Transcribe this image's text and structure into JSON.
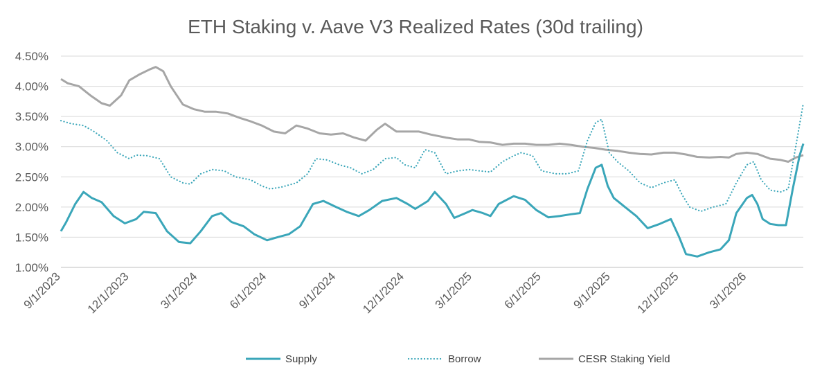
{
  "chart_data": {
    "type": "line",
    "title": "ETH Staking v. Aave V3 Realized Rates (30d trailing)",
    "xlabel": "",
    "ylabel": "",
    "ylim": [
      0.01,
      0.045
    ],
    "y_ticks": [
      "1.00%",
      "1.50%",
      "2.00%",
      "2.50%",
      "3.00%",
      "3.50%",
      "4.00%",
      "4.50%"
    ],
    "x_range": [
      "2023-09-01",
      "2026-05-15"
    ],
    "x_ticks": [
      "9/1/2023",
      "12/1/2023",
      "3/1/2024",
      "6/1/2024",
      "9/1/2024",
      "12/1/2024",
      "3/1/2025",
      "6/1/2025",
      "9/1/2025",
      "12/1/2025",
      "3/1/2026"
    ],
    "grid": true,
    "legend_position": "bottom",
    "series": [
      {
        "name": "Supply",
        "color": "#3aa6b9",
        "style": "solid",
        "points": [
          [
            "2023-09-01",
            1.6
          ],
          [
            "2023-09-08",
            1.75
          ],
          [
            "2023-09-20",
            2.05
          ],
          [
            "2023-10-01",
            2.25
          ],
          [
            "2023-10-12",
            2.15
          ],
          [
            "2023-10-25",
            2.08
          ],
          [
            "2023-11-10",
            1.85
          ],
          [
            "2023-11-25",
            1.73
          ],
          [
            "2023-12-10",
            1.8
          ],
          [
            "2023-12-20",
            1.92
          ],
          [
            "2024-01-05",
            1.9
          ],
          [
            "2024-01-20",
            1.6
          ],
          [
            "2024-02-05",
            1.42
          ],
          [
            "2024-02-20",
            1.4
          ],
          [
            "2024-03-05",
            1.6
          ],
          [
            "2024-03-20",
            1.85
          ],
          [
            "2024-04-01",
            1.9
          ],
          [
            "2024-04-15",
            1.75
          ],
          [
            "2024-05-01",
            1.68
          ],
          [
            "2024-05-15",
            1.55
          ],
          [
            "2024-06-01",
            1.45
          ],
          [
            "2024-06-15",
            1.5
          ],
          [
            "2024-06-30",
            1.55
          ],
          [
            "2024-07-15",
            1.68
          ],
          [
            "2024-08-01",
            2.05
          ],
          [
            "2024-08-15",
            2.1
          ],
          [
            "2024-09-01",
            2.0
          ],
          [
            "2024-09-15",
            1.92
          ],
          [
            "2024-10-01",
            1.85
          ],
          [
            "2024-10-15",
            1.95
          ],
          [
            "2024-11-01",
            2.1
          ],
          [
            "2024-11-20",
            2.15
          ],
          [
            "2024-12-05",
            2.05
          ],
          [
            "2024-12-15",
            1.97
          ],
          [
            "2025-01-01",
            2.1
          ],
          [
            "2025-01-10",
            2.25
          ],
          [
            "2025-01-25",
            2.05
          ],
          [
            "2025-02-05",
            1.82
          ],
          [
            "2025-02-20",
            1.9
          ],
          [
            "2025-03-01",
            1.95
          ],
          [
            "2025-03-15",
            1.9
          ],
          [
            "2025-03-25",
            1.85
          ],
          [
            "2025-04-05",
            2.05
          ],
          [
            "2025-04-25",
            2.18
          ],
          [
            "2025-05-10",
            2.12
          ],
          [
            "2025-05-25",
            1.95
          ],
          [
            "2025-06-10",
            1.83
          ],
          [
            "2025-06-25",
            1.85
          ],
          [
            "2025-07-10",
            1.88
          ],
          [
            "2025-07-22",
            1.9
          ],
          [
            "2025-08-01",
            2.3
          ],
          [
            "2025-08-12",
            2.65
          ],
          [
            "2025-08-20",
            2.7
          ],
          [
            "2025-08-28",
            2.35
          ],
          [
            "2025-09-05",
            2.15
          ],
          [
            "2025-09-20",
            2.0
          ],
          [
            "2025-10-05",
            1.85
          ],
          [
            "2025-10-20",
            1.65
          ],
          [
            "2025-11-05",
            1.72
          ],
          [
            "2025-11-20",
            1.8
          ],
          [
            "2025-12-01",
            1.5
          ],
          [
            "2025-12-10",
            1.22
          ],
          [
            "2025-12-25",
            1.18
          ],
          [
            "2026-01-10",
            1.25
          ],
          [
            "2026-01-25",
            1.3
          ],
          [
            "2026-02-05",
            1.45
          ],
          [
            "2026-02-15",
            1.9
          ],
          [
            "2026-03-01",
            2.15
          ],
          [
            "2026-03-08",
            2.2
          ],
          [
            "2026-03-15",
            2.05
          ],
          [
            "2026-03-22",
            1.8
          ],
          [
            "2026-04-01",
            1.72
          ],
          [
            "2026-04-12",
            1.7
          ],
          [
            "2026-04-22",
            1.7
          ],
          [
            "2026-05-01",
            2.3
          ],
          [
            "2026-05-10",
            2.85
          ],
          [
            "2026-05-15",
            3.05
          ]
        ]
      },
      {
        "name": "Borrow",
        "color": "#3aa6b9",
        "style": "dotted",
        "points": [
          [
            "2023-09-01",
            3.43
          ],
          [
            "2023-09-15",
            3.38
          ],
          [
            "2023-10-01",
            3.35
          ],
          [
            "2023-10-15",
            3.25
          ],
          [
            "2023-11-01",
            3.1
          ],
          [
            "2023-11-15",
            2.9
          ],
          [
            "2023-12-01",
            2.8
          ],
          [
            "2023-12-10",
            2.86
          ],
          [
            "2023-12-25",
            2.85
          ],
          [
            "2024-01-10",
            2.8
          ],
          [
            "2024-01-25",
            2.5
          ],
          [
            "2024-02-10",
            2.4
          ],
          [
            "2024-02-20",
            2.38
          ],
          [
            "2024-03-05",
            2.55
          ],
          [
            "2024-03-20",
            2.62
          ],
          [
            "2024-04-05",
            2.6
          ],
          [
            "2024-04-20",
            2.5
          ],
          [
            "2024-05-10",
            2.45
          ],
          [
            "2024-05-25",
            2.35
          ],
          [
            "2024-06-05",
            2.3
          ],
          [
            "2024-06-20",
            2.33
          ],
          [
            "2024-07-10",
            2.4
          ],
          [
            "2024-07-25",
            2.55
          ],
          [
            "2024-08-05",
            2.8
          ],
          [
            "2024-08-20",
            2.78
          ],
          [
            "2024-09-05",
            2.7
          ],
          [
            "2024-09-20",
            2.65
          ],
          [
            "2024-10-05",
            2.55
          ],
          [
            "2024-10-20",
            2.62
          ],
          [
            "2024-11-05",
            2.8
          ],
          [
            "2024-11-20",
            2.82
          ],
          [
            "2024-12-01",
            2.7
          ],
          [
            "2024-12-15",
            2.65
          ],
          [
            "2024-12-28",
            2.95
          ],
          [
            "2025-01-10",
            2.9
          ],
          [
            "2025-01-25",
            2.55
          ],
          [
            "2025-02-10",
            2.6
          ],
          [
            "2025-02-25",
            2.62
          ],
          [
            "2025-03-10",
            2.6
          ],
          [
            "2025-03-25",
            2.58
          ],
          [
            "2025-04-10",
            2.75
          ],
          [
            "2025-04-25",
            2.85
          ],
          [
            "2025-05-05",
            2.9
          ],
          [
            "2025-05-20",
            2.85
          ],
          [
            "2025-06-01",
            2.6
          ],
          [
            "2025-06-20",
            2.55
          ],
          [
            "2025-07-05",
            2.55
          ],
          [
            "2025-07-20",
            2.6
          ],
          [
            "2025-08-01",
            3.1
          ],
          [
            "2025-08-12",
            3.4
          ],
          [
            "2025-08-20",
            3.45
          ],
          [
            "2025-08-30",
            2.9
          ],
          [
            "2025-09-10",
            2.75
          ],
          [
            "2025-09-25",
            2.6
          ],
          [
            "2025-10-10",
            2.4
          ],
          [
            "2025-10-25",
            2.32
          ],
          [
            "2025-11-10",
            2.4
          ],
          [
            "2025-11-25",
            2.45
          ],
          [
            "2025-12-05",
            2.2
          ],
          [
            "2025-12-15",
            2.0
          ],
          [
            "2025-12-30",
            1.93
          ],
          [
            "2026-01-15",
            2.0
          ],
          [
            "2026-02-01",
            2.05
          ],
          [
            "2026-02-15",
            2.4
          ],
          [
            "2026-03-01",
            2.7
          ],
          [
            "2026-03-10",
            2.75
          ],
          [
            "2026-03-20",
            2.45
          ],
          [
            "2026-04-01",
            2.28
          ],
          [
            "2026-04-15",
            2.25
          ],
          [
            "2026-04-25",
            2.3
          ],
          [
            "2026-05-05",
            3.0
          ],
          [
            "2026-05-15",
            3.72
          ]
        ]
      },
      {
        "name": "CESR Staking Yield",
        "color": "#a6a6a6",
        "style": "solid",
        "points": [
          [
            "2023-09-01",
            4.12
          ],
          [
            "2023-09-10",
            4.05
          ],
          [
            "2023-09-25",
            4.0
          ],
          [
            "2023-10-10",
            3.85
          ],
          [
            "2023-10-25",
            3.72
          ],
          [
            "2023-11-05",
            3.68
          ],
          [
            "2023-11-20",
            3.85
          ],
          [
            "2023-12-01",
            4.1
          ],
          [
            "2023-12-15",
            4.2
          ],
          [
            "2023-12-28",
            4.28
          ],
          [
            "2024-01-05",
            4.32
          ],
          [
            "2024-01-15",
            4.25
          ],
          [
            "2024-01-25",
            4.0
          ],
          [
            "2024-02-10",
            3.7
          ],
          [
            "2024-02-25",
            3.62
          ],
          [
            "2024-03-10",
            3.58
          ],
          [
            "2024-03-25",
            3.58
          ],
          [
            "2024-04-10",
            3.55
          ],
          [
            "2024-04-25",
            3.48
          ],
          [
            "2024-05-10",
            3.42
          ],
          [
            "2024-05-25",
            3.35
          ],
          [
            "2024-06-10",
            3.25
          ],
          [
            "2024-06-25",
            3.22
          ],
          [
            "2024-07-10",
            3.35
          ],
          [
            "2024-07-25",
            3.3
          ],
          [
            "2024-08-10",
            3.22
          ],
          [
            "2024-08-25",
            3.2
          ],
          [
            "2024-09-10",
            3.22
          ],
          [
            "2024-09-25",
            3.15
          ],
          [
            "2024-10-10",
            3.1
          ],
          [
            "2024-10-25",
            3.28
          ],
          [
            "2024-11-05",
            3.38
          ],
          [
            "2024-11-20",
            3.25
          ],
          [
            "2024-12-05",
            3.25
          ],
          [
            "2024-12-20",
            3.25
          ],
          [
            "2025-01-05",
            3.2
          ],
          [
            "2025-01-25",
            3.15
          ],
          [
            "2025-02-10",
            3.12
          ],
          [
            "2025-02-25",
            3.12
          ],
          [
            "2025-03-10",
            3.08
          ],
          [
            "2025-03-25",
            3.07
          ],
          [
            "2025-04-10",
            3.03
          ],
          [
            "2025-04-25",
            3.05
          ],
          [
            "2025-05-10",
            3.05
          ],
          [
            "2025-05-25",
            3.03
          ],
          [
            "2025-06-10",
            3.03
          ],
          [
            "2025-06-25",
            3.05
          ],
          [
            "2025-07-10",
            3.03
          ],
          [
            "2025-07-25",
            3.0
          ],
          [
            "2025-08-10",
            2.98
          ],
          [
            "2025-08-25",
            2.95
          ],
          [
            "2025-09-10",
            2.93
          ],
          [
            "2025-09-25",
            2.9
          ],
          [
            "2025-10-10",
            2.88
          ],
          [
            "2025-10-25",
            2.87
          ],
          [
            "2025-11-10",
            2.9
          ],
          [
            "2025-11-25",
            2.9
          ],
          [
            "2025-12-10",
            2.87
          ],
          [
            "2025-12-25",
            2.83
          ],
          [
            "2026-01-10",
            2.82
          ],
          [
            "2026-01-25",
            2.83
          ],
          [
            "2026-02-05",
            2.82
          ],
          [
            "2026-02-15",
            2.88
          ],
          [
            "2026-03-01",
            2.9
          ],
          [
            "2026-03-15",
            2.88
          ],
          [
            "2026-04-01",
            2.8
          ],
          [
            "2026-04-15",
            2.78
          ],
          [
            "2026-04-25",
            2.75
          ],
          [
            "2026-05-05",
            2.82
          ],
          [
            "2026-05-15",
            2.86
          ]
        ]
      }
    ]
  }
}
